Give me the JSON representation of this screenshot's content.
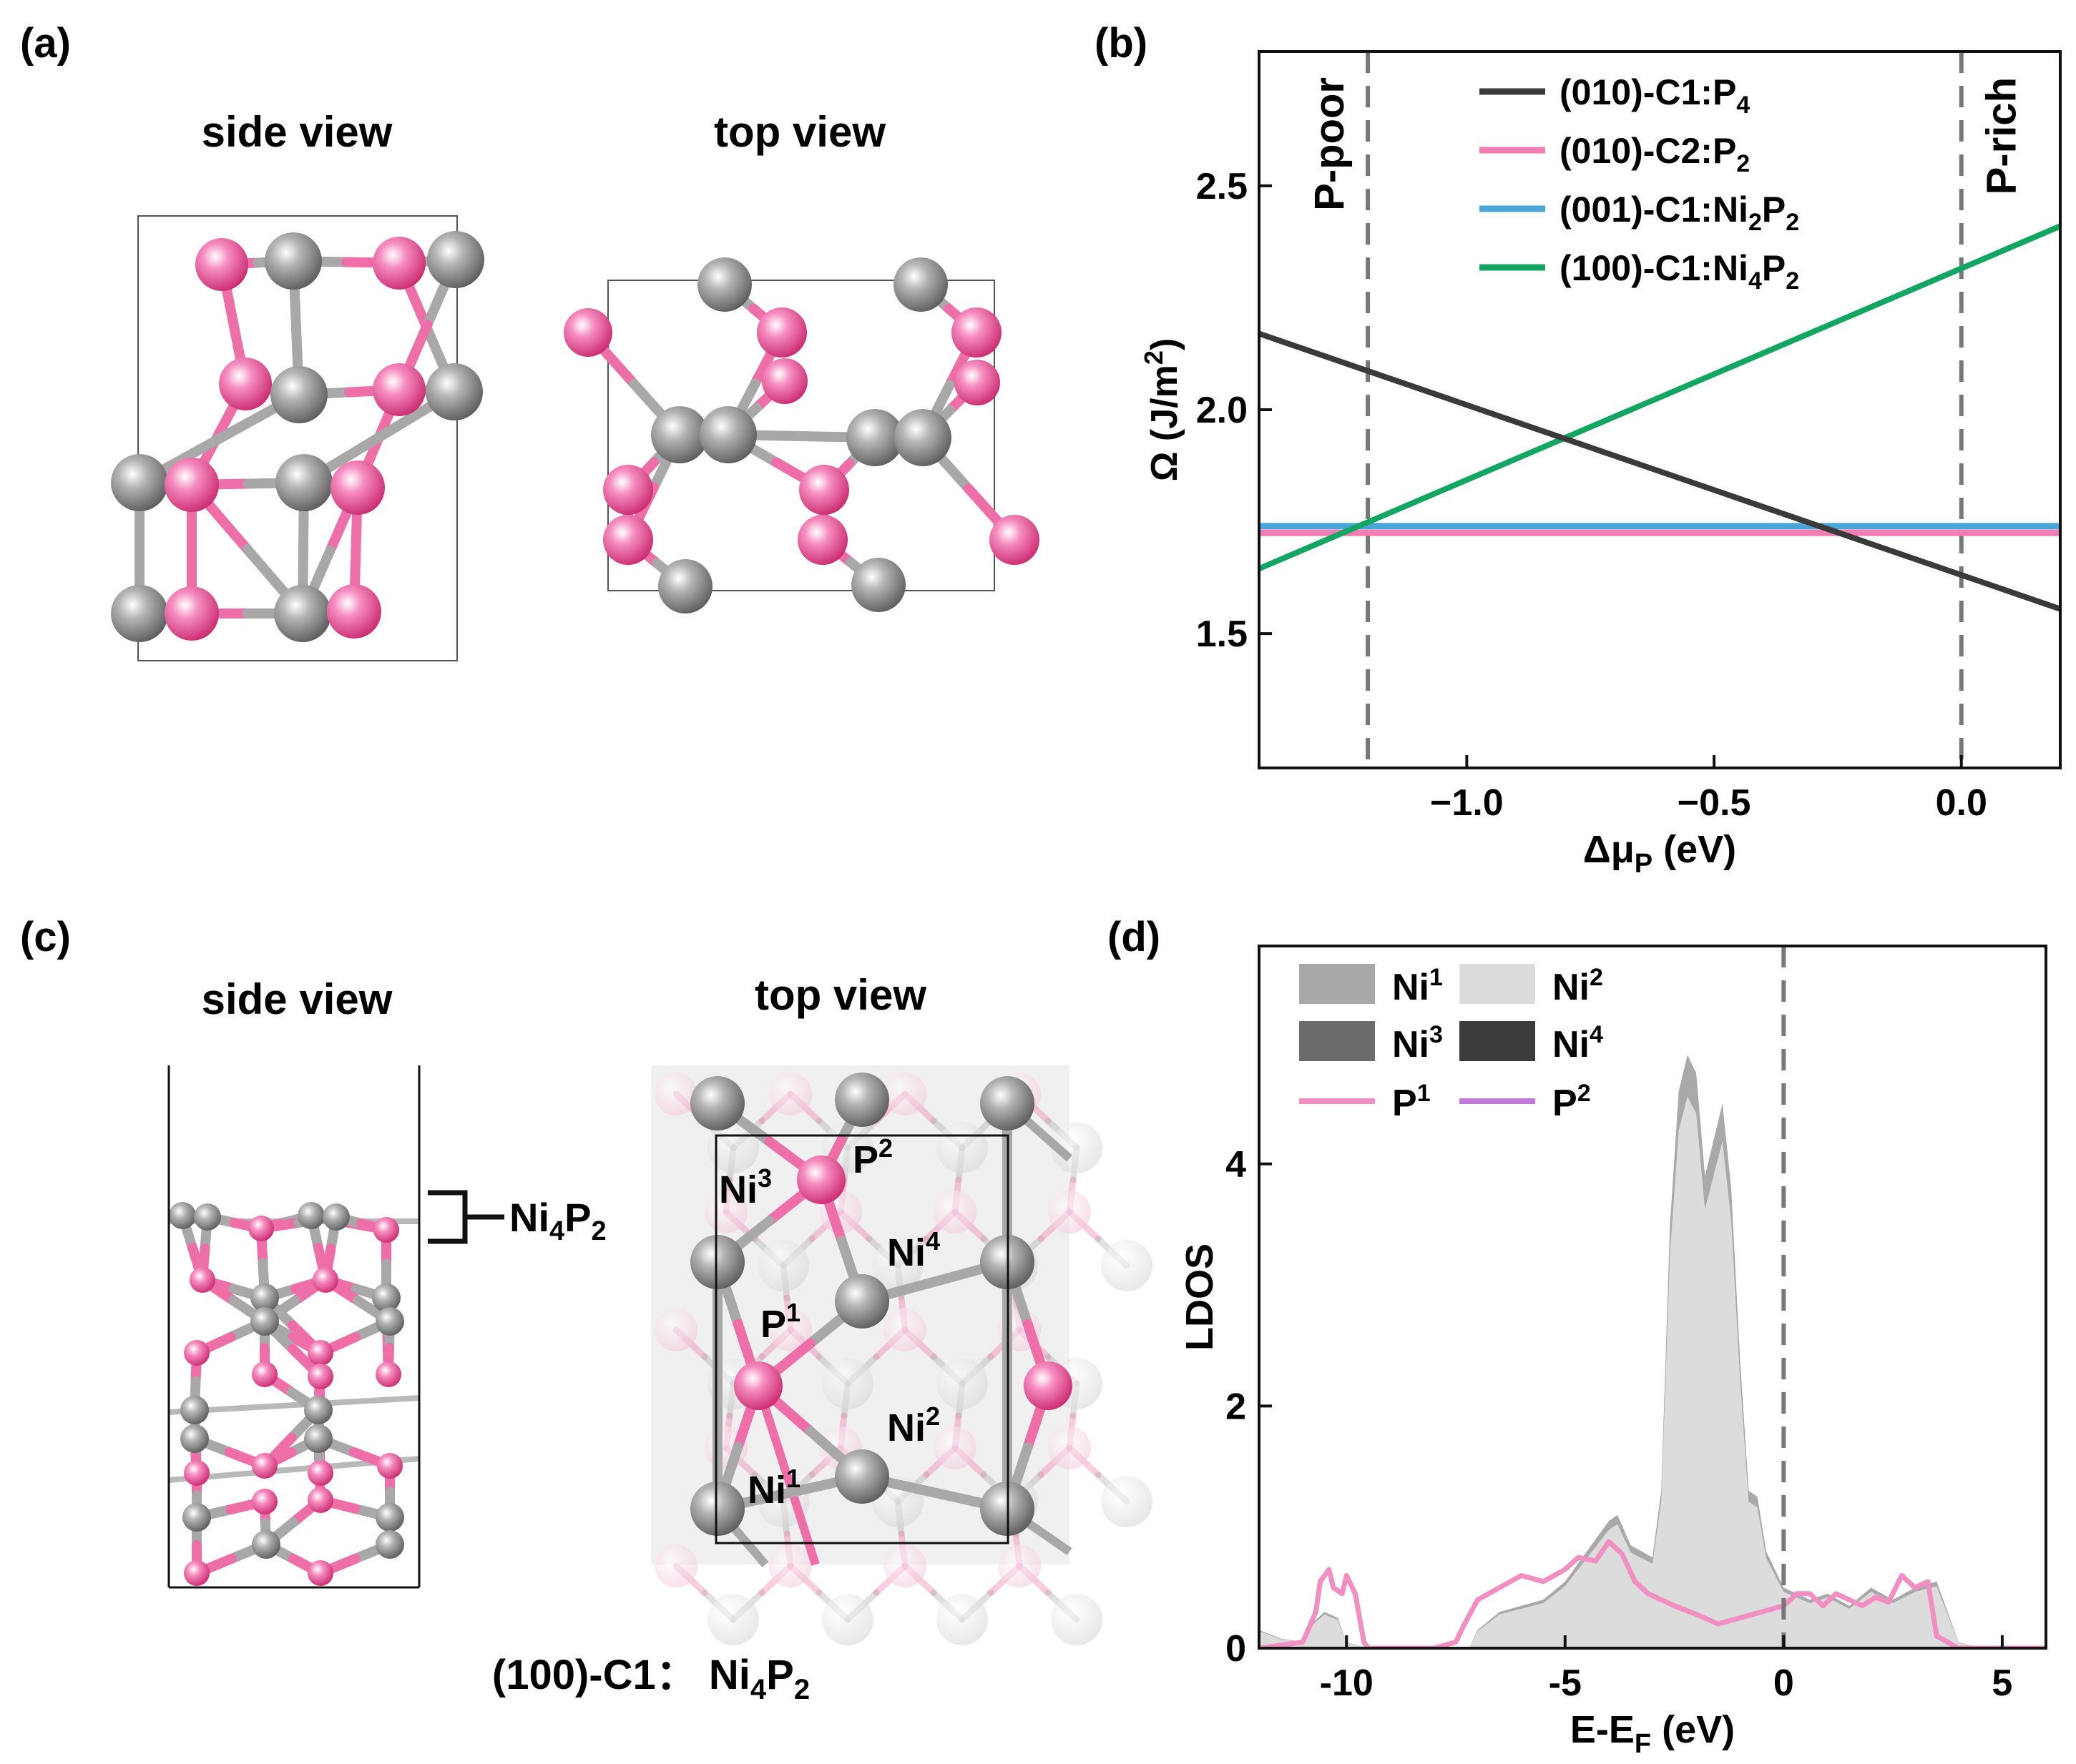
{
  "colors": {
    "ni_atom": "#8c8c8c",
    "p_atom": "#ee5c9c",
    "bond_ni": "#a8a8a8",
    "bond_p": "#ee6fa8",
    "line_010_c1": "#3a3a3a",
    "line_010_c2": "#f27db3",
    "line_001_c1": "#4aa6d6",
    "line_100_c1": "#13a663",
    "dos_ni1": "#a9a9a9",
    "dos_ni2": "#dcdcdc",
    "dos_ni3": "#6b6b6b",
    "dos_ni4": "#3c3c3c",
    "dos_p1": "#f28fc2",
    "dos_p2": "#c27ad8"
  },
  "panels": {
    "a": {
      "label": "(a)",
      "side_view": "side view",
      "top_view": "top view"
    },
    "c": {
      "label": "(c)",
      "side_view": "side view",
      "top_view": "top view",
      "layer_label": "Ni",
      "layer_sub4": "4",
      "layer_p": "P",
      "layer_sub2": "2",
      "caption_prefix": "(100)-C1： Ni",
      "caption_sub4": "4",
      "caption_p": "P",
      "caption_sub2": "2",
      "site_labels": [
        {
          "base": "Ni",
          "sup": "3"
        },
        {
          "base": "P",
          "sup": "2"
        },
        {
          "base": "Ni",
          "sup": "4"
        },
        {
          "base": "P",
          "sup": "1"
        },
        {
          "base": "Ni",
          "sup": "2"
        },
        {
          "base": "Ni",
          "sup": "1"
        }
      ]
    }
  },
  "chart_data": [
    {
      "panel": "(b)",
      "type": "line",
      "xlim": [
        -1.42,
        0.2
      ],
      "ylim": [
        1.2,
        2.8
      ],
      "xticks": [
        -1.0,
        -0.5,
        0.0
      ],
      "xtick_labels": [
        "−1.0",
        "−0.5",
        "0.0"
      ],
      "yticks": [
        1.5,
        2.0,
        2.5
      ],
      "ytick_labels": [
        "1.5",
        "2.0",
        "2.5"
      ],
      "xlabel_main": "Δμ",
      "xlabel_sub": "P",
      "xlabel_tail": " (eV)",
      "ylabel_main": "Ω (J/m",
      "ylabel_sup": "2",
      "ylabel_tail": ")",
      "vlines": [
        -1.2,
        0.0
      ],
      "annotations": [
        {
          "text": "P-poor",
          "x": -1.2,
          "side": "left"
        },
        {
          "text": "P-rich",
          "x": 0.0,
          "side": "right"
        }
      ],
      "legend_position": "top-center",
      "series": [
        {
          "name": "(010)-C1:P",
          "sub": "4",
          "points": [
            [
              -1.42,
              2.17
            ],
            [
              0.2,
              1.555
            ]
          ]
        },
        {
          "name": "(010)-C2:P",
          "sub": "2",
          "points": [
            [
              -1.42,
              1.725
            ],
            [
              0.2,
              1.725
            ]
          ]
        },
        {
          "name": "(001)-C1:Ni",
          "sub": "2",
          "name2": "P",
          "sub2": "2",
          "points": [
            [
              -1.42,
              1.74
            ],
            [
              0.2,
              1.74
            ]
          ]
        },
        {
          "name": "(100)-C1:Ni",
          "sub": "4",
          "name2": "P",
          "sub2": "2",
          "points": [
            [
              -1.42,
              1.645
            ],
            [
              0.2,
              2.41
            ]
          ]
        }
      ]
    },
    {
      "panel": "(d)",
      "type": "area",
      "xlim": [
        -12,
        6
      ],
      "ylim": [
        0,
        5.8
      ],
      "xticks": [
        -10,
        -5,
        0,
        5
      ],
      "xtick_labels": [
        "-10",
        "-5",
        "0",
        "5"
      ],
      "yticks": [
        0,
        2,
        4
      ],
      "ytick_labels": [
        "0",
        "2",
        "4"
      ],
      "xlabel_main": "E-E",
      "xlabel_sub": "F",
      "xlabel_tail": " (eV)",
      "ylabel": "LDOS",
      "vlines": [
        0
      ],
      "legend_position": "top-left",
      "legend": [
        {
          "base": "Ni",
          "sup": "1",
          "kind": "patch",
          "color_key": "dos_ni1"
        },
        {
          "base": "Ni",
          "sup": "2",
          "kind": "patch",
          "color_key": "dos_ni2"
        },
        {
          "base": "Ni",
          "sup": "3",
          "kind": "patch",
          "color_key": "dos_ni3"
        },
        {
          "base": "Ni",
          "sup": "4",
          "kind": "patch",
          "color_key": "dos_ni4"
        },
        {
          "base": "P",
          "sup": "1",
          "kind": "line",
          "color_key": "dos_p1"
        },
        {
          "base": "P",
          "sup": "2",
          "kind": "line",
          "color_key": "dos_p2"
        }
      ],
      "ni_dos": {
        "x": [
          -12,
          -11.5,
          -11,
          -10.8,
          -10.5,
          -10.2,
          -10,
          -9.5,
          -9,
          -8,
          -7.2,
          -7,
          -6.5,
          -6,
          -5.5,
          -5,
          -4.5,
          -4,
          -3.8,
          -3.5,
          -3,
          -2.8,
          -2.6,
          -2.4,
          -2.2,
          -2,
          -1.8,
          -1.6,
          -1.4,
          -1.2,
          -1,
          -0.8,
          -0.6,
          -0.4,
          -0.2,
          0,
          0.3,
          0.6,
          1,
          1.5,
          2,
          2.5,
          3,
          3.5,
          4,
          4.5,
          6
        ],
        "y": [
          0.15,
          0.08,
          0.05,
          0.2,
          0.3,
          0.25,
          0.05,
          0,
          0,
          0,
          0,
          0.15,
          0.3,
          0.35,
          0.4,
          0.55,
          0.8,
          1.05,
          1.1,
          0.85,
          0.75,
          1.3,
          3.5,
          4.6,
          4.9,
          4.75,
          3.9,
          4.2,
          4.5,
          3.8,
          2.4,
          1.3,
          1.25,
          0.8,
          0.65,
          0.5,
          0.45,
          0.4,
          0.45,
          0.35,
          0.5,
          0.4,
          0.5,
          0.55,
          0.05,
          0,
          0
        ]
      },
      "p1_dos": {
        "x": [
          -12,
          -11,
          -10.7,
          -10.6,
          -10.4,
          -10.3,
          -10.1,
          -10,
          -9.8,
          -9.6,
          -9.5,
          -9,
          -8,
          -7.5,
          -7.3,
          -7,
          -6.5,
          -6,
          -5.5,
          -5,
          -4.7,
          -4.3,
          -4,
          -3.7,
          -3.4,
          -3.1,
          -2.8,
          -2.5,
          -2,
          -1.5,
          -1,
          -0.5,
          0,
          0.3,
          0.6,
          0.9,
          1.2,
          1.5,
          1.8,
          2.1,
          2.4,
          2.7,
          3,
          3.3,
          3.5,
          4,
          6
        ],
        "y": [
          0,
          0.05,
          0.3,
          0.55,
          0.65,
          0.5,
          0.45,
          0.6,
          0.45,
          0.05,
          0,
          0,
          0,
          0.05,
          0.2,
          0.4,
          0.5,
          0.6,
          0.55,
          0.65,
          0.75,
          0.72,
          0.88,
          0.78,
          0.55,
          0.45,
          0.4,
          0.35,
          0.28,
          0.2,
          0.25,
          0.3,
          0.35,
          0.45,
          0.45,
          0.35,
          0.45,
          0.4,
          0.35,
          0.42,
          0.38,
          0.6,
          0.5,
          0.55,
          0.1,
          0,
          0
        ]
      }
    }
  ]
}
